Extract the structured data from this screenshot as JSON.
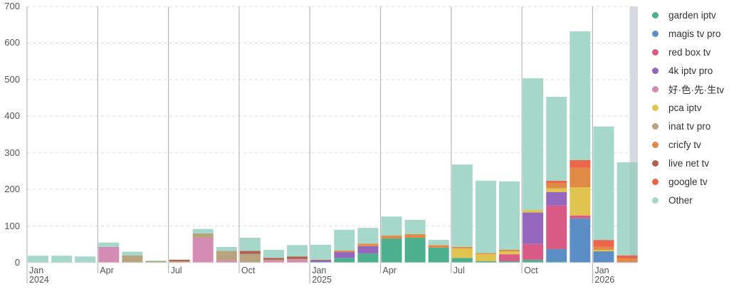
{
  "chart_data": {
    "type": "bar",
    "stacked": true,
    "title": "",
    "xlabel": "",
    "ylabel": "",
    "ylim": [
      0,
      700
    ],
    "yticks": [
      0,
      100,
      200,
      300,
      400,
      500,
      600,
      700
    ],
    "grid": "horizontal dashed",
    "legend_position": "right",
    "categories": [
      "2024-01",
      "2024-02",
      "2024-03",
      "2024-04",
      "2024-05",
      "2024-06",
      "2024-07",
      "2024-08",
      "2024-09",
      "2024-10",
      "2024-11",
      "2024-12",
      "2025-01",
      "2025-02",
      "2025-03",
      "2025-04",
      "2025-05",
      "2025-06",
      "2025-07",
      "2025-08",
      "2025-09",
      "2025-10",
      "2025-11",
      "2025-12",
      "2026-01",
      "2026-02"
    ],
    "x_tick_labels": [
      {
        "index": 0,
        "label": "Jan",
        "sub": "2024"
      },
      {
        "index": 3,
        "label": "Apr",
        "sub": ""
      },
      {
        "index": 6,
        "label": "Jul",
        "sub": ""
      },
      {
        "index": 9,
        "label": "Oct",
        "sub": ""
      },
      {
        "index": 12,
        "label": "Jan",
        "sub": "2025"
      },
      {
        "index": 15,
        "label": "Apr",
        "sub": ""
      },
      {
        "index": 18,
        "label": "Jul",
        "sub": ""
      },
      {
        "index": 21,
        "label": "Oct",
        "sub": ""
      },
      {
        "index": 24,
        "label": "Jan",
        "sub": "2026"
      }
    ],
    "series": [
      {
        "name": "garden iptv",
        "color": "#4caf8e",
        "values": [
          0,
          0,
          0,
          0,
          0,
          0,
          0,
          0,
          0,
          0,
          0,
          0,
          2,
          13,
          25,
          66,
          68,
          41,
          13,
          4,
          4,
          8,
          3,
          0,
          0,
          0
        ]
      },
      {
        "name": "magis tv pro",
        "color": "#5b8ec4",
        "values": [
          0,
          0,
          0,
          0,
          0,
          0,
          0,
          0,
          0,
          0,
          0,
          0,
          0,
          0,
          0,
          0,
          0,
          0,
          0,
          0,
          0,
          0,
          34,
          121,
          31,
          0
        ]
      },
      {
        "name": "red box tv",
        "color": "#d95b85",
        "values": [
          0,
          0,
          0,
          0,
          0,
          0,
          0,
          0,
          0,
          0,
          0,
          0,
          0,
          0,
          0,
          0,
          0,
          0,
          0,
          0,
          19,
          43,
          119,
          8,
          0,
          2
        ]
      },
      {
        "name": "4k iptv pro",
        "color": "#9466be",
        "values": [
          0,
          0,
          0,
          0,
          0,
          0,
          0,
          0,
          0,
          0,
          0,
          0,
          4,
          16,
          20,
          0,
          0,
          0,
          0,
          0,
          0,
          86,
          37,
          0,
          0,
          0
        ]
      },
      {
        "name": "好·色·先·生tv",
        "color": "#d48bb4",
        "values": [
          0,
          0,
          0,
          43,
          0,
          0,
          0,
          68,
          6,
          0,
          6,
          8,
          0,
          0,
          0,
          0,
          0,
          0,
          0,
          0,
          0,
          0,
          0,
          0,
          0,
          0
        ]
      },
      {
        "name": "pca iptv",
        "color": "#e0c44f",
        "values": [
          0,
          0,
          0,
          0,
          0,
          0,
          0,
          0,
          0,
          0,
          0,
          0,
          0,
          0,
          0,
          0,
          0,
          0,
          26,
          19,
          8,
          7,
          10,
          77,
          4,
          0
        ]
      },
      {
        "name": "inat tv pro",
        "color": "#b9a27e",
        "values": [
          0,
          0,
          0,
          0,
          20,
          4,
          4,
          12,
          26,
          24,
          2,
          2,
          0,
          0,
          0,
          0,
          0,
          0,
          0,
          0,
          0,
          0,
          0,
          0,
          0,
          0
        ]
      },
      {
        "name": "cricfy tv",
        "color": "#e08a45",
        "values": [
          0,
          0,
          0,
          0,
          0,
          0,
          0,
          0,
          0,
          0,
          0,
          0,
          0,
          4,
          7,
          8,
          10,
          7,
          4,
          3,
          4,
          0,
          14,
          53,
          8,
          9
        ]
      },
      {
        "name": "live net tv",
        "color": "#b05e4f",
        "values": [
          0,
          0,
          0,
          0,
          0,
          0,
          4,
          0,
          0,
          8,
          5,
          7,
          2,
          0,
          0,
          0,
          0,
          0,
          0,
          0,
          0,
          0,
          0,
          0,
          0,
          0
        ]
      },
      {
        "name": "google tv",
        "color": "#eb6549",
        "values": [
          0,
          0,
          0,
          0,
          0,
          0,
          0,
          0,
          0,
          0,
          0,
          0,
          0,
          0,
          0,
          0,
          0,
          0,
          0,
          0,
          0,
          0,
          7,
          21,
          19,
          9
        ]
      },
      {
        "name": "Other",
        "color": "#a5d8ca",
        "values": [
          19,
          19,
          17,
          12,
          10,
          2,
          0,
          12,
          11,
          36,
          22,
          31,
          41,
          57,
          43,
          52,
          39,
          14,
          225,
          198,
          187,
          360,
          229,
          352,
          310,
          254
        ]
      }
    ],
    "totals": [
      19,
      19,
      17,
      55,
      30,
      6,
      8,
      92,
      43,
      68,
      35,
      48,
      49,
      90,
      95,
      126,
      117,
      62,
      268,
      224,
      222,
      504,
      453,
      632,
      372,
      274
    ],
    "highlighted_partial_period": "2026-02"
  }
}
